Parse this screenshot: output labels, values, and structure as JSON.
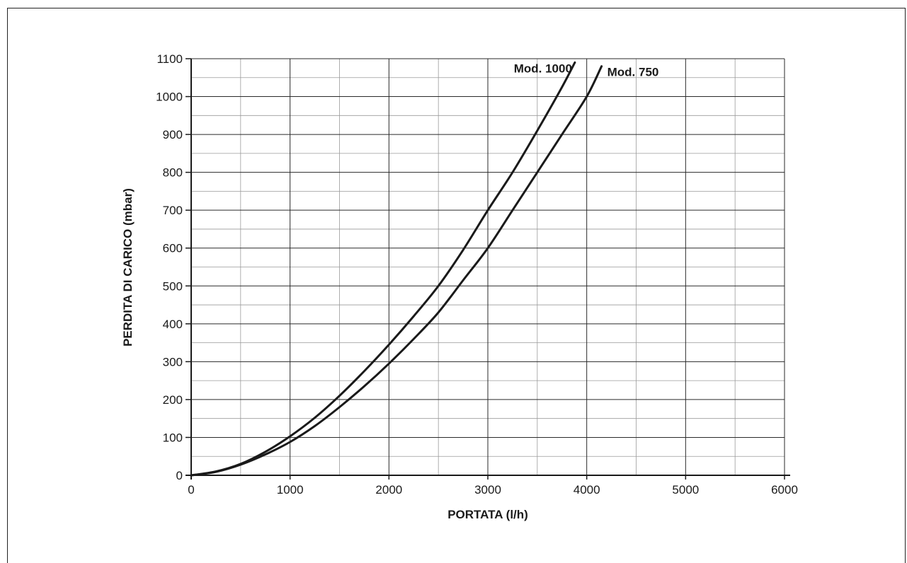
{
  "chart_data": {
    "type": "line",
    "title": "",
    "xlabel": "PORTATA (l/h)",
    "ylabel": "PERDITA DI CARICO (mbar)",
    "xlim": [
      0,
      6000
    ],
    "ylim": [
      0,
      1100
    ],
    "x_major_ticks": [
      0,
      1000,
      2000,
      3000,
      4000,
      5000,
      6000
    ],
    "y_major_ticks": [
      0,
      100,
      200,
      300,
      400,
      500,
      600,
      700,
      800,
      900,
      1000,
      1100
    ],
    "grid": true,
    "minor_grid": true,
    "legend": "inline labels at curve ends",
    "series": [
      {
        "name": "Mod. 1000",
        "x": [
          0,
          250,
          500,
          750,
          1000,
          1250,
          1500,
          1750,
          2000,
          2250,
          2500,
          2750,
          3000,
          3250,
          3500,
          3750,
          3880
        ],
        "y": [
          0,
          10,
          30,
          62,
          103,
          152,
          210,
          275,
          345,
          420,
          500,
          595,
          700,
          800,
          910,
          1025,
          1090
        ]
      },
      {
        "name": "Mod. 750",
        "x": [
          0,
          250,
          500,
          750,
          1000,
          1250,
          1500,
          1750,
          2000,
          2250,
          2500,
          2750,
          3000,
          3250,
          3500,
          3750,
          4000,
          4150
        ],
        "y": [
          0,
          9,
          28,
          55,
          88,
          130,
          180,
          235,
          295,
          360,
          430,
          515,
          600,
          700,
          800,
          900,
          1000,
          1080
        ]
      }
    ],
    "line_color": "#1a1a1a"
  }
}
